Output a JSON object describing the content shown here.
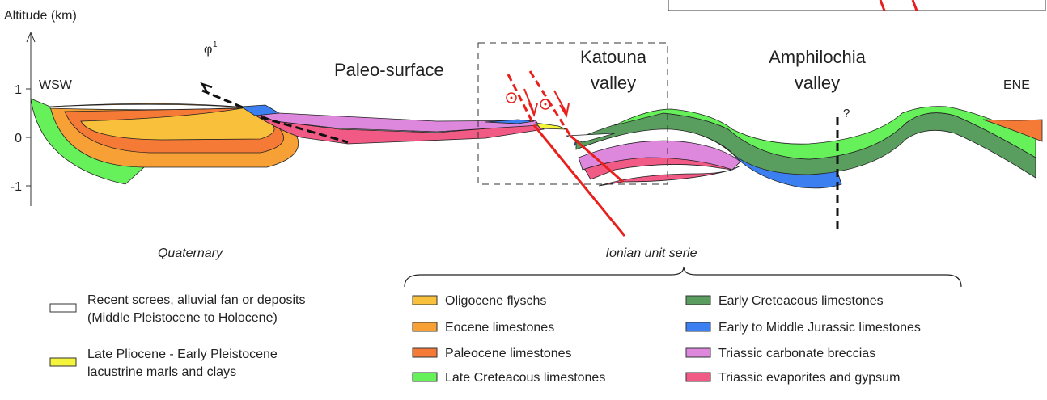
{
  "axis": {
    "label": "Altitude (km)",
    "ticks": [
      "1",
      "0",
      "-1"
    ]
  },
  "section": {
    "west": "WSW",
    "east": "ENE",
    "paleo_surface": "Paleo-surface",
    "katouna": [
      "Katouna",
      "valley"
    ],
    "amphilochia": [
      "Amphilochia",
      "valley"
    ],
    "fault": "φ",
    "fault_index": "1",
    "question": "?"
  },
  "groups": {
    "quaternary": "Quaternary",
    "ionian": "Ionian unit serie"
  },
  "legend": {
    "quaternary": [
      {
        "label": [
          "Recent screes, alluvial fan or deposits",
          "(Middle Pleistocene to Holocene)"
        ],
        "color": "#ffffff"
      },
      {
        "label": [
          "Late Pliocene - Early Pleistocene",
          "lacustrine marls and clays"
        ],
        "color": "#f4f43c"
      }
    ],
    "ionian": [
      {
        "label": "Oligocene flyschs",
        "color": "#f9c13b"
      },
      {
        "label": "Eocene limestones",
        "color": "#f7a035"
      },
      {
        "label": "Paleocene limestones",
        "color": "#f47a36"
      },
      {
        "label": "Late Creteacous limestones",
        "color": "#66f05a"
      },
      {
        "label": "Early Creteacous limestones",
        "color": "#5a9e5f"
      },
      {
        "label": "Early to Middle Jurassic limestones",
        "color": "#3b7ff0"
      },
      {
        "label": "Triassic carbonate breccias",
        "color": "#dd88dd"
      },
      {
        "label": "Triassic evaporites and gypsum",
        "color": "#f25a86"
      }
    ]
  }
}
